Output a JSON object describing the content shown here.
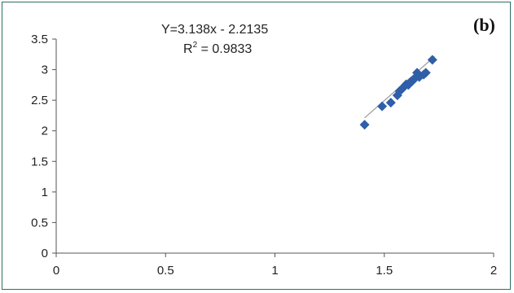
{
  "panel_label": "(b)",
  "chart_data": {
    "type": "scatter",
    "title": "",
    "xlabel": "",
    "ylabel": "",
    "xlim": [
      0,
      2
    ],
    "ylim": [
      0,
      3.5
    ],
    "x_ticks": [
      "0",
      "0.5",
      "1",
      "1.5",
      "2"
    ],
    "y_ticks": [
      "0",
      "0.5",
      "1",
      "1.5",
      "2",
      "2.5",
      "3",
      "3.5"
    ],
    "grid": false,
    "legend": "none",
    "marker_color": "#2f5fa8",
    "trendline_color": "#9a9a9a",
    "equation": "Y=3.138x - 2.2135",
    "r_squared_label": "R",
    "r_squared_value": " = 0.9833",
    "trendline": {
      "slope": 3.138,
      "intercept": -2.2135,
      "x_range": [
        1.41,
        1.73
      ]
    },
    "series": [
      {
        "x": [
          1.41,
          1.49,
          1.53,
          1.56,
          1.57,
          1.58,
          1.59,
          1.6,
          1.61,
          1.62,
          1.63,
          1.64,
          1.65,
          1.66,
          1.68,
          1.69,
          1.72
        ],
        "y": [
          2.1,
          2.4,
          2.46,
          2.58,
          2.65,
          2.68,
          2.72,
          2.76,
          2.75,
          2.8,
          2.82,
          2.86,
          2.95,
          2.88,
          2.92,
          2.95,
          3.16
        ]
      }
    ]
  }
}
